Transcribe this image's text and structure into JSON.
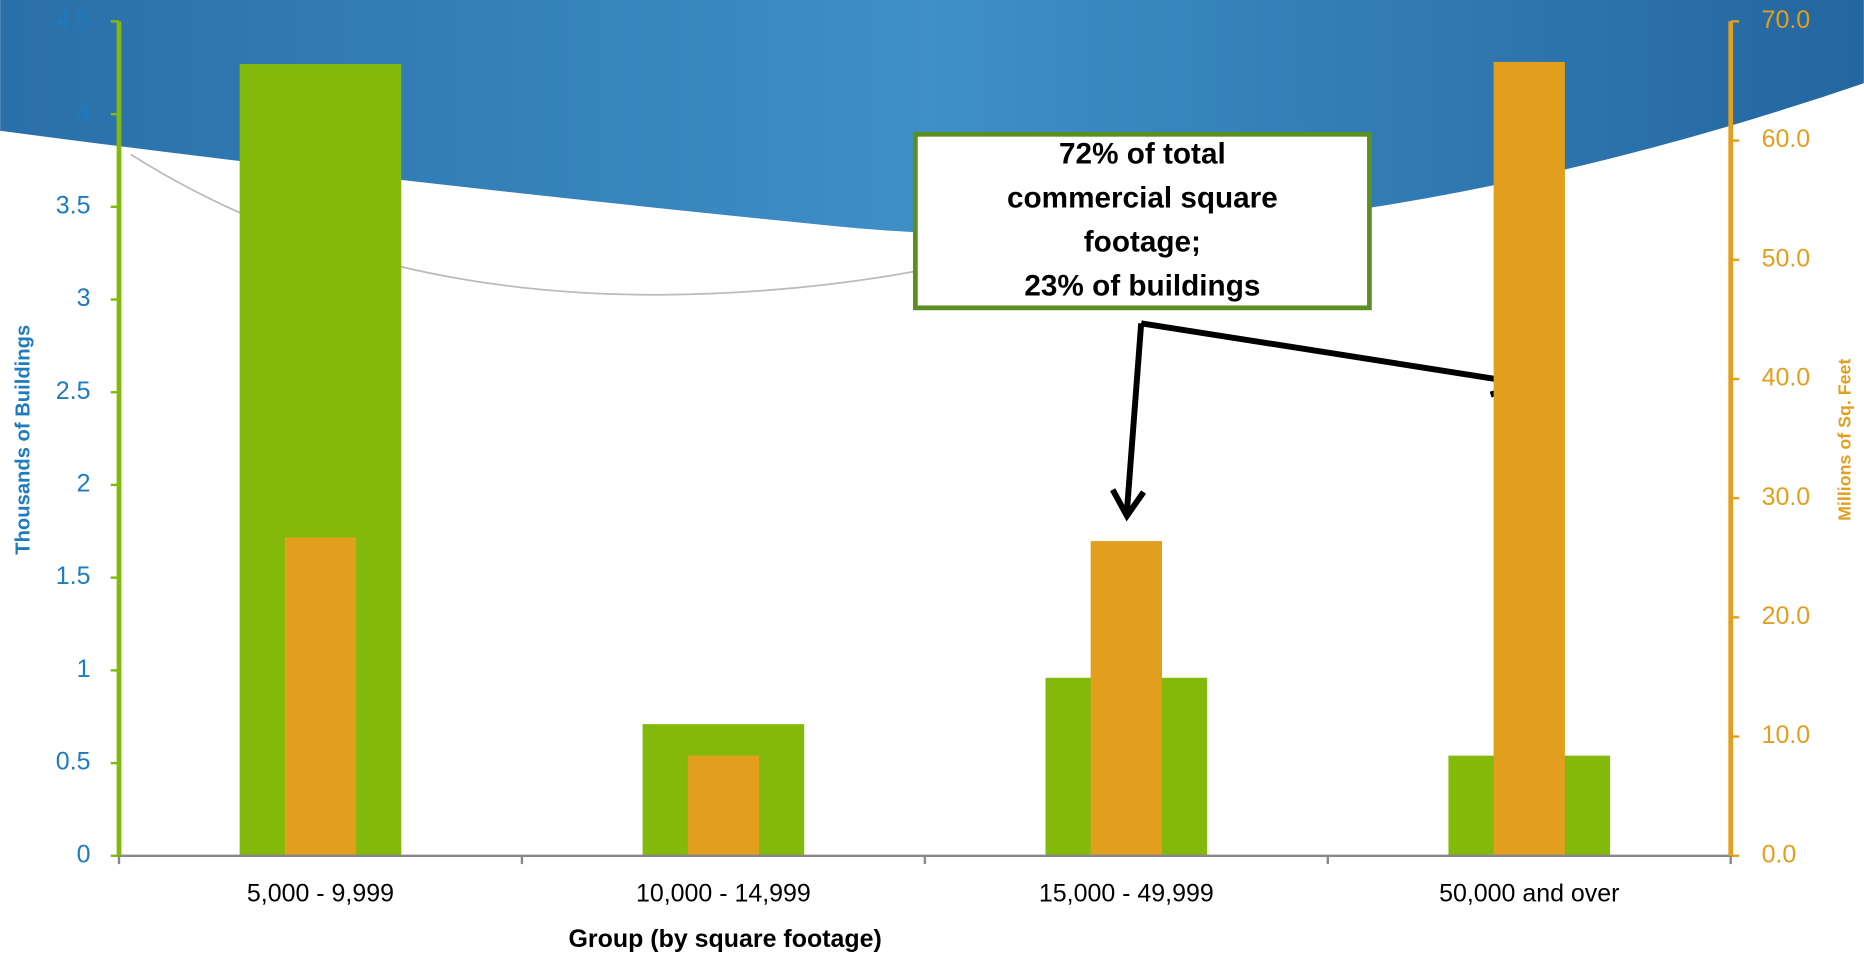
{
  "chart_data": {
    "type": "bar",
    "categories": [
      "5,000 - 9,999",
      "10,000 - 14,999",
      "15,000 - 49,999",
      "50,000 and over"
    ],
    "series": [
      {
        "color": "#82b90a",
        "values": [
          4.27,
          0.71,
          0.96,
          0.54
        ]
      },
      {
        "color": "#e29f1e",
        "values": [
          26.7,
          8.4,
          26.4,
          66.6
        ],
        "axis": "y2"
      }
    ],
    "ylim": [
      0,
      4.5
    ],
    "yticks": [
      0,
      0.5,
      1,
      1.5,
      2,
      2.5,
      3,
      3.5,
      4,
      4.5
    ],
    "y2lim": [
      0,
      70
    ],
    "y2ticks": [
      {
        "value": 0,
        "label": "0.0"
      },
      {
        "value": 10,
        "label": "10.0"
      },
      {
        "value": 20,
        "label": "20.0"
      },
      {
        "value": 30,
        "label": "30.0"
      },
      {
        "value": 40,
        "label": "40.0"
      },
      {
        "value": 50,
        "label": "50.0"
      },
      {
        "value": 60,
        "label": "60.0"
      },
      {
        "value": 70,
        "label": "70.0"
      }
    ],
    "xlabel": "Group (by square footage)",
    "ylabel": "Thousands of Buildings",
    "y2label": "Millions of Sq. Feet",
    "annotation": [
      "72% of total",
      "commercial square",
      "footage;",
      "23% of buildings"
    ]
  }
}
